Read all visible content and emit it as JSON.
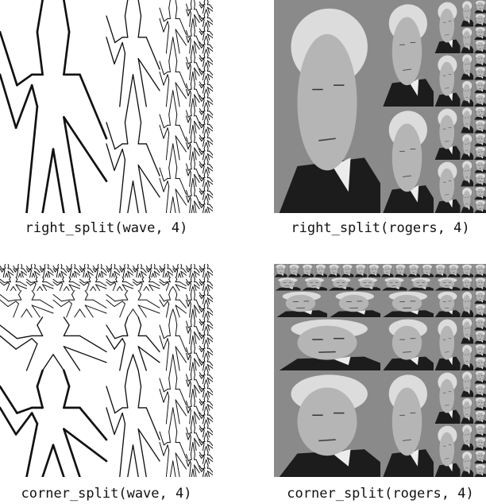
{
  "figure": {
    "panels": [
      {
        "id": "rs-wave",
        "caption": "right_split(wave, 4)",
        "painter": "wave",
        "operation": "right_split",
        "depth": 4
      },
      {
        "id": "rs-rogers",
        "caption": "right_split(rogers, 4)",
        "painter": "rogers",
        "operation": "right_split",
        "depth": 4
      },
      {
        "id": "cs-wave",
        "caption": "corner_split(wave, 4)",
        "painter": "wave",
        "operation": "corner_split",
        "depth": 4
      },
      {
        "id": "cs-rogers",
        "caption": "corner_split(rogers, 4)",
        "painter": "rogers",
        "operation": "corner_split",
        "depth": 4
      }
    ]
  },
  "colors": {
    "ink": "#111111",
    "portrait_background": "#8a8a8a",
    "portrait_face": "#b5b5b5",
    "portrait_hair": "#dcdcdc",
    "portrait_coat": "#1c1c1c",
    "portrait_collar": "#ececec"
  }
}
